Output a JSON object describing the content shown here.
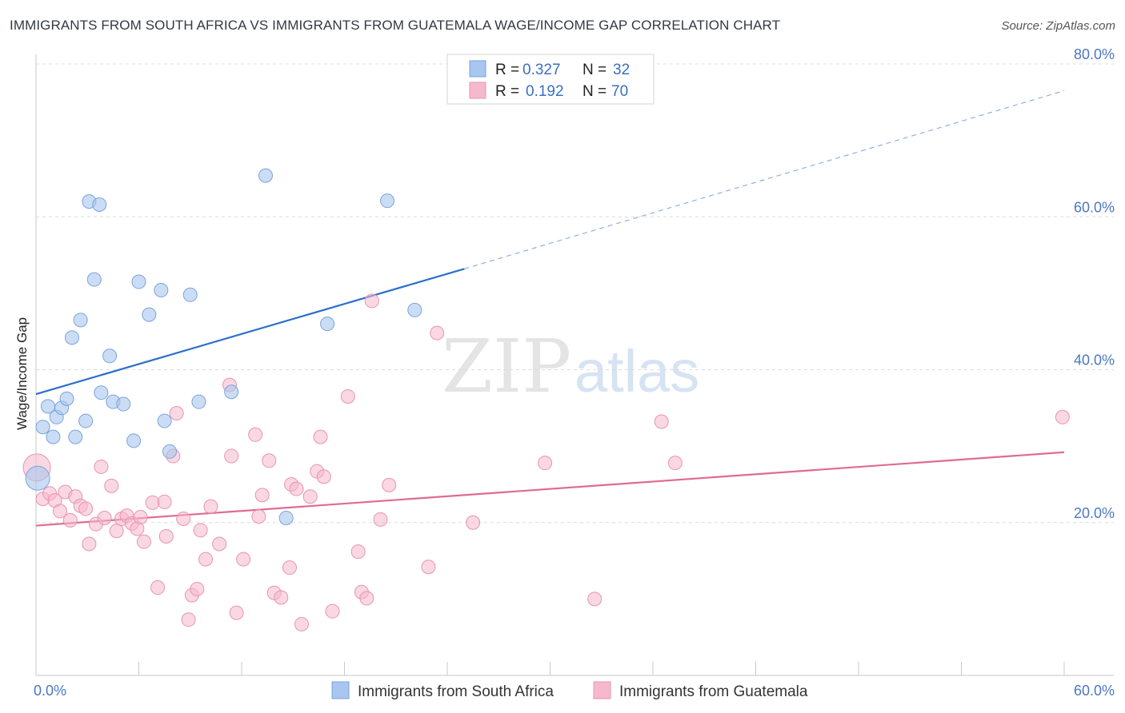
{
  "header": {
    "title": "IMMIGRANTS FROM SOUTH AFRICA VS IMMIGRANTS FROM GUATEMALA WAGE/INCOME GAP CORRELATION CHART",
    "source": "Source: ZipAtlas.com"
  },
  "watermark": {
    "zip": "ZIP",
    "atlas": "atlas"
  },
  "legend": {
    "r_label": "R =",
    "n_label": "N =",
    "rows": [
      {
        "r": "0.327",
        "n": "32",
        "color": "#a8c6ef"
      },
      {
        "r": "0.192",
        "n": "70",
        "color": "#f6b8cc"
      }
    ]
  },
  "colors": {
    "blue_fill": "#a8c6ef",
    "blue_stroke": "#7aa3dc",
    "blue_line": "#2a6fcc",
    "pink_fill": "#f6b8cc",
    "pink_stroke": "#e993b0",
    "pink_line": "#e06a93",
    "tick_text": "#4a78c0",
    "grid": "#dcdcdc"
  },
  "chart_data": {
    "type": "scatter",
    "title": "IMMIGRANTS FROM SOUTH AFRICA VS IMMIGRANTS FROM GUATEMALA WAGE/INCOME GAP CORRELATION CHART",
    "xlabel": "",
    "ylabel": "Wage/Income Gap",
    "xlim": [
      0,
      60
    ],
    "ylim": [
      0,
      80
    ],
    "x_tick_labels": [
      "0.0%",
      "60.0%"
    ],
    "y_ticks": [
      20,
      40,
      60,
      80
    ],
    "y_tick_labels": [
      "20.0%",
      "40.0%",
      "60.0%",
      "80.0%"
    ],
    "series": [
      {
        "name": "Immigrants from South Africa",
        "color": "#a8c6ef",
        "trend": {
          "x0": 0,
          "y0": 36.8,
          "x1": 25,
          "y1": 53.2,
          "dashed_to_x": 60,
          "dashed_to_y": 76.5
        },
        "points": [
          {
            "x": 0.1,
            "y": 25.8,
            "big": true
          },
          {
            "x": 0.4,
            "y": 32.5
          },
          {
            "x": 0.7,
            "y": 35.2
          },
          {
            "x": 1.0,
            "y": 31.2
          },
          {
            "x": 1.2,
            "y": 33.8
          },
          {
            "x": 1.5,
            "y": 35.0
          },
          {
            "x": 1.8,
            "y": 36.2
          },
          {
            "x": 2.3,
            "y": 31.2
          },
          {
            "x": 2.6,
            "y": 46.5
          },
          {
            "x": 2.1,
            "y": 44.2
          },
          {
            "x": 2.9,
            "y": 33.3
          },
          {
            "x": 3.1,
            "y": 62.0
          },
          {
            "x": 3.4,
            "y": 51.8
          },
          {
            "x": 3.7,
            "y": 61.6
          },
          {
            "x": 3.8,
            "y": 37.0
          },
          {
            "x": 4.3,
            "y": 41.8
          },
          {
            "x": 4.5,
            "y": 35.8
          },
          {
            "x": 5.1,
            "y": 35.5
          },
          {
            "x": 5.7,
            "y": 30.7
          },
          {
            "x": 6.0,
            "y": 51.5
          },
          {
            "x": 6.6,
            "y": 47.2
          },
          {
            "x": 7.3,
            "y": 50.4
          },
          {
            "x": 7.5,
            "y": 33.3
          },
          {
            "x": 7.8,
            "y": 29.3
          },
          {
            "x": 9.0,
            "y": 49.8
          },
          {
            "x": 9.5,
            "y": 35.8
          },
          {
            "x": 11.4,
            "y": 37.1
          },
          {
            "x": 13.4,
            "y": 65.4
          },
          {
            "x": 14.6,
            "y": 20.6
          },
          {
            "x": 17.0,
            "y": 46.0
          },
          {
            "x": 20.5,
            "y": 62.1
          },
          {
            "x": 22.1,
            "y": 47.8
          }
        ]
      },
      {
        "name": "Immigrants from Guatemala",
        "color": "#f6b8cc",
        "trend": {
          "x0": 0,
          "y0": 19.6,
          "x1": 60,
          "y1": 29.2
        },
        "points": [
          {
            "x": 0.05,
            "y": 27.2,
            "big": true
          },
          {
            "x": 0.4,
            "y": 23.1
          },
          {
            "x": 0.8,
            "y": 23.8
          },
          {
            "x": 1.1,
            "y": 22.9
          },
          {
            "x": 1.4,
            "y": 21.5
          },
          {
            "x": 1.7,
            "y": 24.0
          },
          {
            "x": 2.0,
            "y": 20.3
          },
          {
            "x": 2.3,
            "y": 23.4
          },
          {
            "x": 2.6,
            "y": 22.2
          },
          {
            "x": 2.9,
            "y": 21.8
          },
          {
            "x": 3.1,
            "y": 17.2
          },
          {
            "x": 3.5,
            "y": 19.8
          },
          {
            "x": 3.8,
            "y": 27.3
          },
          {
            "x": 4.0,
            "y": 20.6
          },
          {
            "x": 4.4,
            "y": 24.8
          },
          {
            "x": 4.7,
            "y": 18.9
          },
          {
            "x": 5.0,
            "y": 20.5
          },
          {
            "x": 5.3,
            "y": 20.9
          },
          {
            "x": 5.6,
            "y": 19.9
          },
          {
            "x": 5.9,
            "y": 19.2
          },
          {
            "x": 6.1,
            "y": 20.7
          },
          {
            "x": 6.3,
            "y": 17.5
          },
          {
            "x": 6.8,
            "y": 22.6
          },
          {
            "x": 7.1,
            "y": 11.5
          },
          {
            "x": 7.5,
            "y": 22.7
          },
          {
            "x": 7.6,
            "y": 18.2
          },
          {
            "x": 8.0,
            "y": 28.7
          },
          {
            "x": 8.2,
            "y": 34.3
          },
          {
            "x": 8.6,
            "y": 20.5
          },
          {
            "x": 8.9,
            "y": 7.3
          },
          {
            "x": 9.1,
            "y": 10.5
          },
          {
            "x": 9.4,
            "y": 11.3
          },
          {
            "x": 9.6,
            "y": 19.0
          },
          {
            "x": 9.9,
            "y": 15.2
          },
          {
            "x": 10.2,
            "y": 22.1
          },
          {
            "x": 10.7,
            "y": 17.2
          },
          {
            "x": 11.3,
            "y": 38.0
          },
          {
            "x": 11.4,
            "y": 28.7
          },
          {
            "x": 11.7,
            "y": 8.2
          },
          {
            "x": 12.1,
            "y": 15.2
          },
          {
            "x": 12.8,
            "y": 31.5
          },
          {
            "x": 13.0,
            "y": 20.8
          },
          {
            "x": 13.2,
            "y": 23.6
          },
          {
            "x": 13.6,
            "y": 28.1
          },
          {
            "x": 13.9,
            "y": 10.8
          },
          {
            "x": 14.3,
            "y": 10.2
          },
          {
            "x": 14.8,
            "y": 14.1
          },
          {
            "x": 14.9,
            "y": 25.0
          },
          {
            "x": 15.2,
            "y": 24.4
          },
          {
            "x": 15.5,
            "y": 6.7
          },
          {
            "x": 16.0,
            "y": 23.4
          },
          {
            "x": 16.4,
            "y": 26.7
          },
          {
            "x": 16.6,
            "y": 31.2
          },
          {
            "x": 16.8,
            "y": 26.0
          },
          {
            "x": 17.3,
            "y": 8.4
          },
          {
            "x": 18.2,
            "y": 36.5
          },
          {
            "x": 18.8,
            "y": 16.2
          },
          {
            "x": 19.0,
            "y": 10.9
          },
          {
            "x": 19.3,
            "y": 10.1
          },
          {
            "x": 19.6,
            "y": 49.0
          },
          {
            "x": 20.1,
            "y": 20.4
          },
          {
            "x": 20.6,
            "y": 24.9
          },
          {
            "x": 22.9,
            "y": 14.2
          },
          {
            "x": 23.4,
            "y": 44.8
          },
          {
            "x": 25.5,
            "y": 20.0
          },
          {
            "x": 29.7,
            "y": 27.8
          },
          {
            "x": 32.6,
            "y": 10.0
          },
          {
            "x": 36.5,
            "y": 33.2
          },
          {
            "x": 37.3,
            "y": 27.8
          },
          {
            "x": 59.9,
            "y": 33.8
          }
        ]
      }
    ],
    "legend_position": "top-center",
    "grid": true
  }
}
